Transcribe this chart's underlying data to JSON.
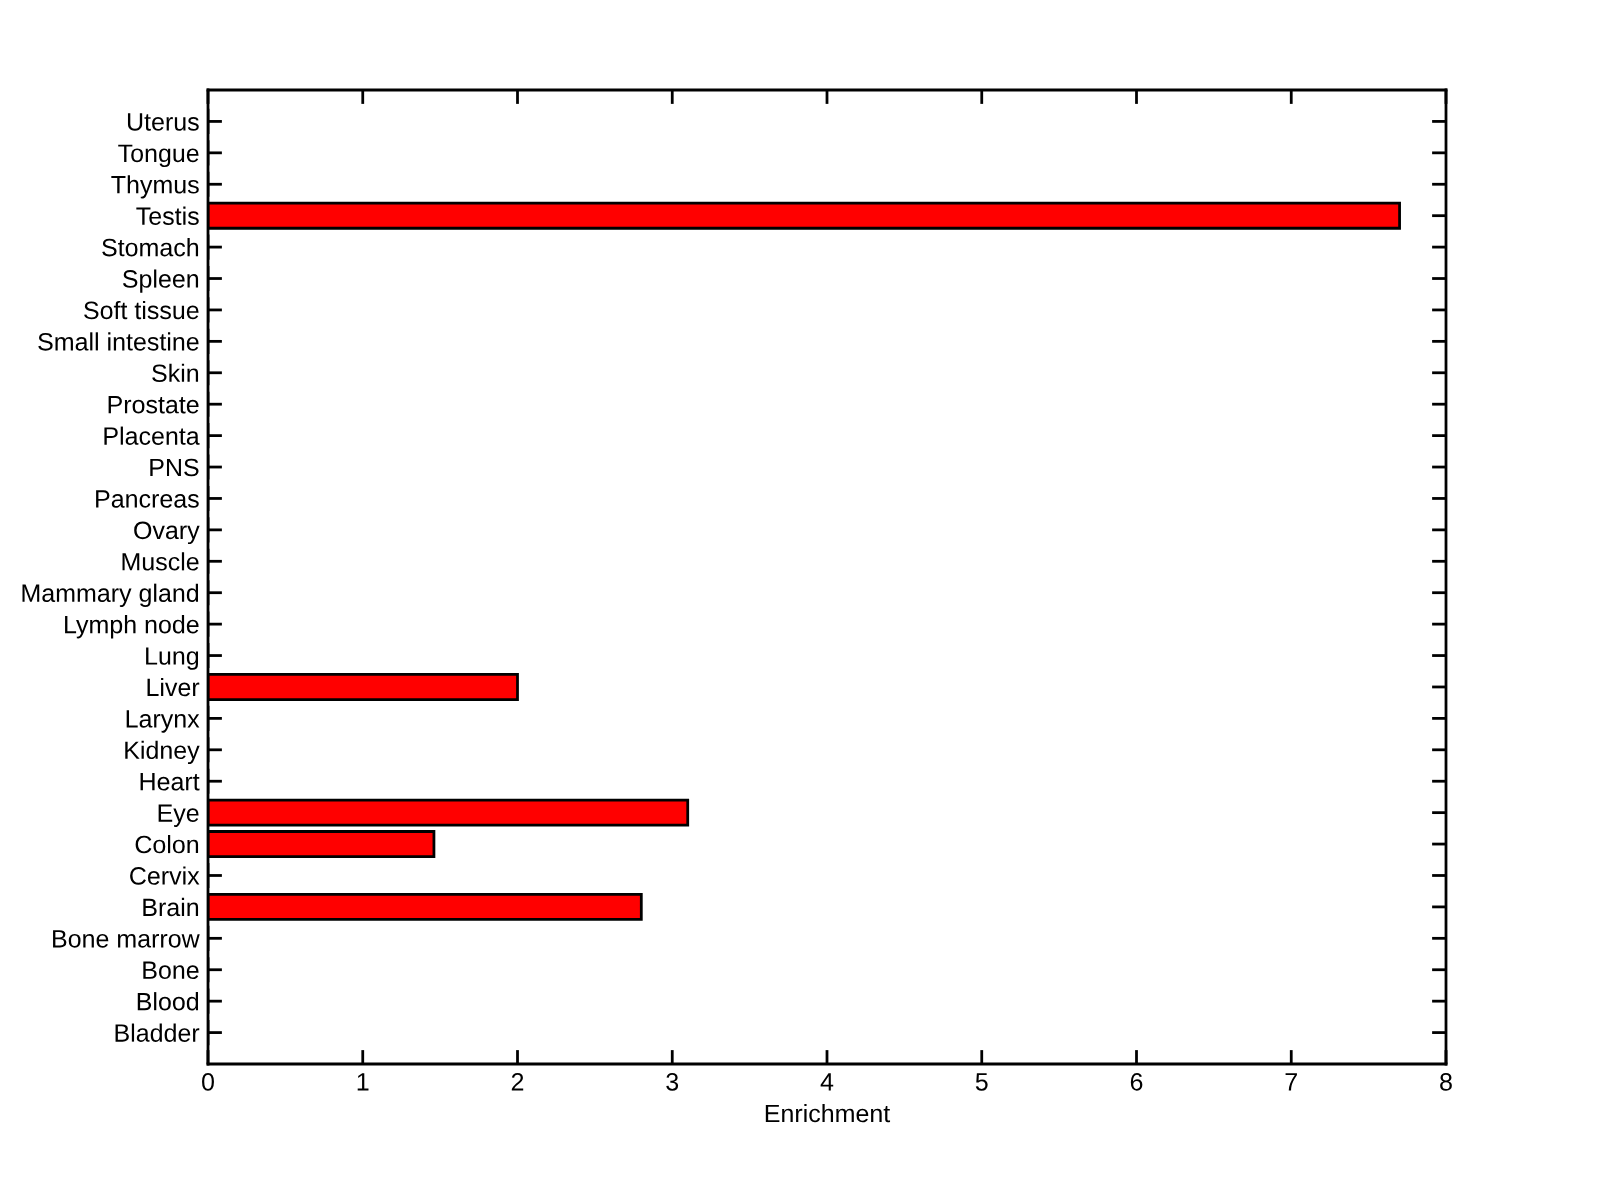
{
  "chart_data": {
    "type": "bar",
    "orientation": "horizontal",
    "xlabel": "Enrichment",
    "categories": [
      "Uterus",
      "Tongue",
      "Thymus",
      "Testis",
      "Stomach",
      "Spleen",
      "Soft tissue",
      "Small intestine",
      "Skin",
      "Prostate",
      "Placenta",
      "PNS",
      "Pancreas",
      "Ovary",
      "Muscle",
      "Mammary gland",
      "Lymph node",
      "Lung",
      "Liver",
      "Larynx",
      "Kidney",
      "Heart",
      "Eye",
      "Colon",
      "Cervix",
      "Brain",
      "Bone marrow",
      "Bone",
      "Blood",
      "Bladder"
    ],
    "values": [
      0,
      0,
      0,
      7.7,
      0,
      0,
      0,
      0,
      0,
      0,
      0,
      0,
      0,
      0,
      0,
      0,
      0,
      0,
      2.0,
      0,
      0,
      0,
      3.1,
      1.46,
      0,
      2.8,
      0,
      0,
      0,
      0
    ],
    "color": "#ff0000",
    "xlim": [
      0,
      8
    ],
    "xticks": [
      0,
      1,
      2,
      3,
      4,
      5,
      6,
      7,
      8
    ]
  }
}
